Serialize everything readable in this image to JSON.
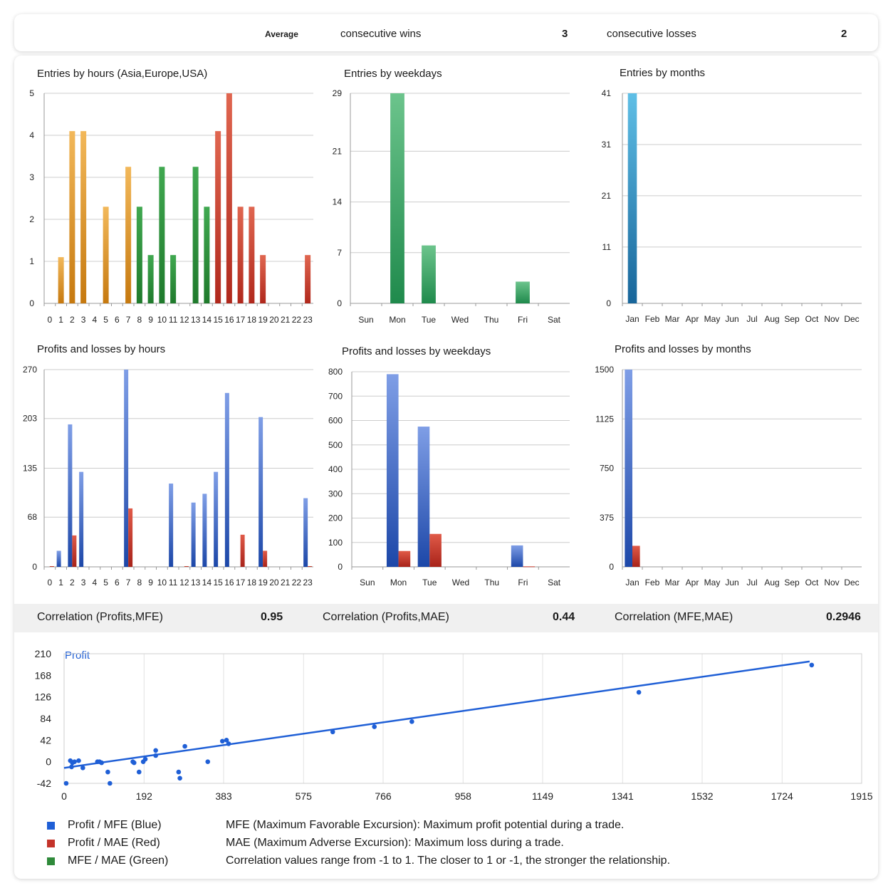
{
  "summary": {
    "average_label": "Average",
    "cons_wins_label": "consecutive wins",
    "cons_wins_value": "3",
    "cons_losses_label": "consecutive losses",
    "cons_losses_value": "2"
  },
  "colors": {
    "asia": "#d98a1e",
    "europe": "#2f8a3a",
    "usa": "#c23a2a",
    "green_bar": "#34a060",
    "month_bar": "#2a8fc2",
    "profit_bar": "#3565c8",
    "loss_bar": "#c4332a",
    "grid": "#cccccc",
    "line": "#1f5fd6"
  },
  "correlations": [
    {
      "label": "Correlation (Profits,MFE)",
      "value": "0.95"
    },
    {
      "label": "Correlation (Profits,MAE)",
      "value": "0.44"
    },
    {
      "label": "Correlation (MFE,MAE)",
      "value": "0.2946"
    }
  ],
  "legend": {
    "items": [
      {
        "label": "Profit / MFE (Blue)",
        "color": "#1f5fd6"
      },
      {
        "label": "Profit / MAE (Red)",
        "color": "#c4332a"
      },
      {
        "label": "MFE / MAE (Green)",
        "color": "#2f8a3a"
      }
    ],
    "notes": [
      "MFE (Maximum Favorable Excursion): Maximum profit potential during a trade.",
      "MAE (Maximum Adverse Excursion): Maximum loss during a trade.",
      "Correlation values range from -1 to 1. The closer to 1 or -1, the stronger the relationship."
    ]
  },
  "chart_data": [
    {
      "type": "bar",
      "title": "Entries by hours (Asia,Europe,USA)",
      "categories": [
        "0",
        "1",
        "2",
        "3",
        "4",
        "5",
        "6",
        "7",
        "8",
        "9",
        "10",
        "11",
        "12",
        "13",
        "14",
        "15",
        "16",
        "17",
        "18",
        "19",
        "20",
        "21",
        "22",
        "23"
      ],
      "values": [
        0,
        1.1,
        4.1,
        4.1,
        0,
        2.3,
        0,
        3.25,
        2.3,
        1.15,
        3.25,
        1.15,
        0,
        3.25,
        2.3,
        4.1,
        5,
        2.3,
        2.3,
        1.15,
        0,
        0,
        0,
        1.15
      ],
      "sessions": [
        "asia",
        "asia",
        "asia",
        "asia",
        "asia",
        "asia",
        "asia",
        "asia",
        "europe",
        "europe",
        "europe",
        "europe",
        "europe",
        "europe",
        "europe",
        "usa",
        "usa",
        "usa",
        "usa",
        "usa",
        "usa",
        "usa",
        "usa",
        "usa"
      ],
      "yticks": [
        "0",
        "1",
        "2",
        "3",
        "4",
        "5"
      ],
      "ylim": [
        0,
        5
      ]
    },
    {
      "type": "bar",
      "title": "Entries by weekdays",
      "categories": [
        "Sun",
        "Mon",
        "Tue",
        "Wed",
        "Thu",
        "Fri",
        "Sat"
      ],
      "values": [
        0,
        29,
        8,
        0,
        0,
        3,
        0
      ],
      "yticks": [
        "0",
        "7",
        "14",
        "21",
        "29"
      ],
      "ylim": [
        0,
        29
      ]
    },
    {
      "type": "bar",
      "title": "Entries by months",
      "categories": [
        "Jan",
        "Feb",
        "Mar",
        "Apr",
        "May",
        "Jun",
        "Jul",
        "Aug",
        "Sep",
        "Oct",
        "Nov",
        "Dec"
      ],
      "values": [
        41,
        0,
        0,
        0,
        0,
        0,
        0,
        0,
        0,
        0,
        0,
        0
      ],
      "yticks": [
        "0",
        "11",
        "21",
        "31",
        "41"
      ],
      "ylim": [
        0,
        41
      ]
    },
    {
      "type": "bar",
      "title": "Profits and losses by hours",
      "categories": [
        "0",
        "1",
        "2",
        "3",
        "4",
        "5",
        "6",
        "7",
        "8",
        "9",
        "10",
        "11",
        "12",
        "13",
        "14",
        "15",
        "16",
        "17",
        "18",
        "19",
        "20",
        "21",
        "22",
        "23"
      ],
      "series": [
        {
          "values": [
            0,
            22,
            195,
            130,
            0,
            0,
            0,
            270,
            0,
            0,
            0,
            114,
            0,
            88,
            100,
            130,
            238,
            0,
            0,
            205,
            0,
            0,
            0,
            94
          ]
        },
        {
          "values": [
            1,
            0,
            43,
            0,
            0,
            0,
            0,
            80,
            0,
            0,
            0,
            0,
            1,
            0,
            0,
            0,
            0,
            44,
            0,
            22,
            0,
            0,
            0,
            1
          ]
        }
      ],
      "yticks": [
        "0",
        "68",
        "135",
        "203",
        "270"
      ],
      "ylim": [
        0,
        270
      ]
    },
    {
      "type": "bar",
      "title": "Profits and losses by weekdays",
      "categories": [
        "Sun",
        "Mon",
        "Tue",
        "Wed",
        "Thu",
        "Fri",
        "Sat"
      ],
      "series": [
        {
          "values": [
            0,
            790,
            575,
            0,
            0,
            88,
            0
          ]
        },
        {
          "values": [
            0,
            65,
            135,
            0,
            0,
            2,
            0
          ]
        }
      ],
      "yticks": [
        "0",
        "100",
        "200",
        "300",
        "400",
        "500",
        "600",
        "700",
        "800"
      ],
      "ylim": [
        0,
        800
      ]
    },
    {
      "type": "bar",
      "title": "Profits and losses by months",
      "categories": [
        "Jan",
        "Feb",
        "Mar",
        "Apr",
        "May",
        "Jun",
        "Jul",
        "Aug",
        "Sep",
        "Oct",
        "Nov",
        "Dec"
      ],
      "series": [
        {
          "values": [
            1500,
            0,
            0,
            0,
            0,
            0,
            0,
            0,
            0,
            0,
            0,
            0
          ]
        },
        {
          "values": [
            160,
            0,
            0,
            0,
            0,
            0,
            0,
            0,
            0,
            0,
            0,
            0
          ]
        }
      ],
      "yticks": [
        "0",
        "375",
        "750",
        "1125",
        "1500"
      ],
      "ylim": [
        0,
        1500
      ]
    },
    {
      "type": "scatter",
      "series_label": "Profit",
      "xticks": [
        "0",
        "192",
        "383",
        "575",
        "766",
        "958",
        "1149",
        "1341",
        "1532",
        "1724",
        "1915"
      ],
      "yticks": [
        "-42",
        "0",
        "42",
        "84",
        "126",
        "168",
        "210"
      ],
      "xlim": [
        0,
        1915
      ],
      "ylim": [
        -42,
        210
      ],
      "points": [
        [
          5,
          -42
        ],
        [
          15,
          2
        ],
        [
          20,
          -2
        ],
        [
          18,
          -10
        ],
        [
          25,
          0
        ],
        [
          35,
          2
        ],
        [
          45,
          -12
        ],
        [
          80,
          0
        ],
        [
          85,
          0
        ],
        [
          90,
          -2
        ],
        [
          105,
          -20
        ],
        [
          110,
          -42
        ],
        [
          165,
          0
        ],
        [
          168,
          -2
        ],
        [
          180,
          -20
        ],
        [
          190,
          0
        ],
        [
          195,
          5
        ],
        [
          220,
          22
        ],
        [
          220,
          12
        ],
        [
          275,
          -20
        ],
        [
          278,
          -32
        ],
        [
          290,
          30
        ],
        [
          345,
          0
        ],
        [
          380,
          40
        ],
        [
          390,
          42
        ],
        [
          395,
          35
        ],
        [
          645,
          58
        ],
        [
          745,
          68
        ],
        [
          835,
          78
        ],
        [
          1380,
          135
        ],
        [
          1795,
          188
        ]
      ],
      "trendline": [
        [
          0,
          -12
        ],
        [
          1790,
          195
        ]
      ]
    }
  ]
}
